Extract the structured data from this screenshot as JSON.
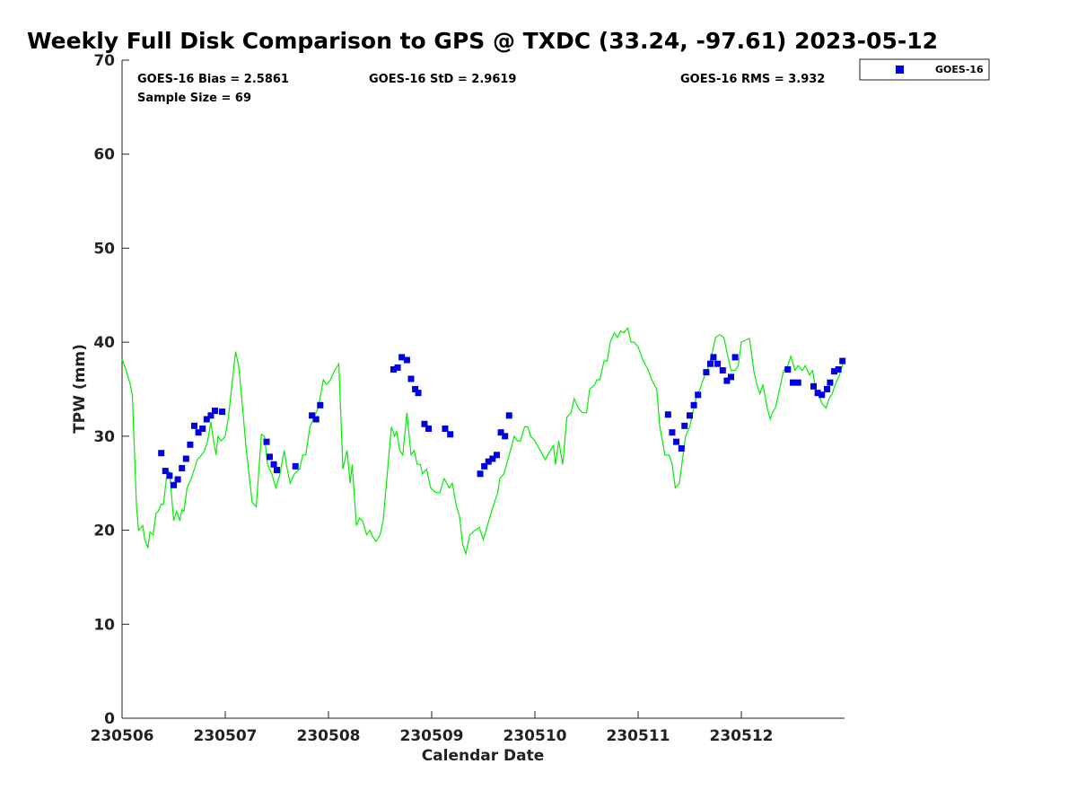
{
  "chart_data": {
    "type": "line",
    "title": "Weekly Full Disk Comparison to GPS @ TXDC (33.24, -97.61) 2023-05-12",
    "xlabel": "Calendar Date",
    "ylabel": "TPW (mm)",
    "xlim": [
      0,
      7
    ],
    "ylim": [
      0,
      70
    ],
    "x_ticks": [
      {
        "x": 0,
        "label": "230506"
      },
      {
        "x": 1,
        "label": "230507"
      },
      {
        "x": 2,
        "label": "230508"
      },
      {
        "x": 3,
        "label": "230509"
      },
      {
        "x": 4,
        "label": "230510"
      },
      {
        "x": 5,
        "label": "230511"
      },
      {
        "x": 6,
        "label": "230512"
      }
    ],
    "y_ticks": [
      0,
      10,
      20,
      30,
      40,
      50,
      60,
      70
    ],
    "stats": {
      "bias": "GOES-16 Bias = 2.5861",
      "std": "GOES-16 StD = 2.9619",
      "rms": "GOES-16 RMS = 3.932",
      "sample": "Sample Size = 69"
    },
    "legend": {
      "label": "GOES-16",
      "color": "#0000dd",
      "position": "top-right outside"
    },
    "series": [
      {
        "name": "GPS",
        "kind": "line",
        "color": "#00ee00",
        "points": [
          [
            0.0,
            38.2
          ],
          [
            0.04,
            37.0
          ],
          [
            0.08,
            35.5
          ],
          [
            0.1,
            34.3
          ],
          [
            0.14,
            22.5
          ],
          [
            0.16,
            20.0
          ],
          [
            0.2,
            20.5
          ],
          [
            0.22,
            19.0
          ],
          [
            0.25,
            18.1
          ],
          [
            0.27,
            19.8
          ],
          [
            0.3,
            19.5
          ],
          [
            0.33,
            21.8
          ],
          [
            0.35,
            22.0
          ],
          [
            0.38,
            22.8
          ],
          [
            0.4,
            22.7
          ],
          [
            0.43,
            25.5
          ],
          [
            0.46,
            26.3
          ],
          [
            0.5,
            21.0
          ],
          [
            0.53,
            22.0
          ],
          [
            0.56,
            21.0
          ],
          [
            0.58,
            22.2
          ],
          [
            0.6,
            22.0
          ],
          [
            0.63,
            24.5
          ],
          [
            0.67,
            25.5
          ],
          [
            0.7,
            26.5
          ],
          [
            0.73,
            27.5
          ],
          [
            0.77,
            28.0
          ],
          [
            0.8,
            28.5
          ],
          [
            0.83,
            29.5
          ],
          [
            0.86,
            31.5
          ],
          [
            0.88,
            30.0
          ],
          [
            0.91,
            28.0
          ],
          [
            0.93,
            30.0
          ],
          [
            0.96,
            29.5
          ],
          [
            1.0,
            30.0
          ],
          [
            1.03,
            32.0
          ],
          [
            1.06,
            35.0
          ],
          [
            1.1,
            39.0
          ],
          [
            1.13,
            37.5
          ],
          [
            1.16,
            34.0
          ],
          [
            1.2,
            29.0
          ],
          [
            1.23,
            26.0
          ],
          [
            1.26,
            23.0
          ],
          [
            1.3,
            22.5
          ],
          [
            1.35,
            30.2
          ],
          [
            1.38,
            30.0
          ],
          [
            1.41,
            27.0
          ],
          [
            1.45,
            26.0
          ],
          [
            1.49,
            24.5
          ],
          [
            1.53,
            26.0
          ],
          [
            1.57,
            28.5
          ],
          [
            1.6,
            26.5
          ],
          [
            1.63,
            25.0
          ],
          [
            1.67,
            26.0
          ],
          [
            1.72,
            26.5
          ],
          [
            1.75,
            28.0
          ],
          [
            1.78,
            28.0
          ],
          [
            1.82,
            31.0
          ],
          [
            1.86,
            32.0
          ],
          [
            1.9,
            33.0
          ],
          [
            1.95,
            36.0
          ],
          [
            1.98,
            35.5
          ],
          [
            2.02,
            36.0
          ],
          [
            2.06,
            37.0
          ],
          [
            2.1,
            37.7
          ],
          [
            2.14,
            26.5
          ],
          [
            2.18,
            28.5
          ],
          [
            2.21,
            25.0
          ],
          [
            2.23,
            27.0
          ],
          [
            2.27,
            20.5
          ],
          [
            2.3,
            21.3
          ],
          [
            2.33,
            21.0
          ],
          [
            2.37,
            19.5
          ],
          [
            2.4,
            20.0
          ],
          [
            2.43,
            19.3
          ],
          [
            2.46,
            18.8
          ],
          [
            2.5,
            19.5
          ],
          [
            2.53,
            21.0
          ],
          [
            2.57,
            26.0
          ],
          [
            2.61,
            31.0
          ],
          [
            2.64,
            30.0
          ],
          [
            2.66,
            30.5
          ],
          [
            2.69,
            28.5
          ],
          [
            2.72,
            28.0
          ],
          [
            2.76,
            32.5
          ],
          [
            2.8,
            28.0
          ],
          [
            2.83,
            28.5
          ],
          [
            2.86,
            27.0
          ],
          [
            2.89,
            27.0
          ],
          [
            2.91,
            26.0
          ],
          [
            2.95,
            26.5
          ],
          [
            2.99,
            24.5
          ],
          [
            3.04,
            24.0
          ],
          [
            3.08,
            24.0
          ],
          [
            3.12,
            25.5
          ],
          [
            3.17,
            24.5
          ],
          [
            3.2,
            25.0
          ],
          [
            3.24,
            22.5
          ],
          [
            3.27,
            21.5
          ],
          [
            3.3,
            18.5
          ],
          [
            3.33,
            17.5
          ],
          [
            3.37,
            19.5
          ],
          [
            3.42,
            20.0
          ],
          [
            3.46,
            20.3
          ],
          [
            3.5,
            19.0
          ],
          [
            3.54,
            20.5
          ],
          [
            3.58,
            22.0
          ],
          [
            3.61,
            23.0
          ],
          [
            3.64,
            24.0
          ],
          [
            3.66,
            25.5
          ],
          [
            3.7,
            26.0
          ],
          [
            3.75,
            28.0
          ],
          [
            3.8,
            30.0
          ],
          [
            3.83,
            29.5
          ],
          [
            3.86,
            29.5
          ],
          [
            3.9,
            31.0
          ],
          [
            3.93,
            31.0
          ],
          [
            3.96,
            30.0
          ],
          [
            4.0,
            29.5
          ],
          [
            4.05,
            28.5
          ],
          [
            4.1,
            27.5
          ],
          [
            4.15,
            28.5
          ],
          [
            4.18,
            29.0
          ],
          [
            4.2,
            27.0
          ],
          [
            4.23,
            29.5
          ],
          [
            4.27,
            27.0
          ],
          [
            4.31,
            32.0
          ],
          [
            4.35,
            32.5
          ],
          [
            4.38,
            34.0
          ],
          [
            4.42,
            33.0
          ],
          [
            4.46,
            32.5
          ],
          [
            4.5,
            32.5
          ],
          [
            4.53,
            35.0
          ],
          [
            4.58,
            35.5
          ],
          [
            4.6,
            36.0
          ],
          [
            4.63,
            36.0
          ],
          [
            4.67,
            38.0
          ],
          [
            4.7,
            38.0
          ],
          [
            4.73,
            40.0
          ],
          [
            4.77,
            41.0
          ],
          [
            4.8,
            40.5
          ],
          [
            4.83,
            41.2
          ],
          [
            4.86,
            41.0
          ],
          [
            4.9,
            41.5
          ],
          [
            4.93,
            40.0
          ],
          [
            4.96,
            40.0
          ],
          [
            5.0,
            39.5
          ],
          [
            5.05,
            38.0
          ],
          [
            5.1,
            37.0
          ],
          [
            5.13,
            36.0
          ],
          [
            5.18,
            35.0
          ],
          [
            5.21,
            31.0
          ],
          [
            5.26,
            28.0
          ],
          [
            5.3,
            28.0
          ],
          [
            5.33,
            27.0
          ],
          [
            5.36,
            24.5
          ],
          [
            5.4,
            25.0
          ],
          [
            5.43,
            27.5
          ],
          [
            5.46,
            30.0
          ],
          [
            5.5,
            31.0
          ],
          [
            5.54,
            33.0
          ],
          [
            5.57,
            34.5
          ],
          [
            5.6,
            35.0
          ],
          [
            5.63,
            36.0
          ],
          [
            5.67,
            37.0
          ],
          [
            5.71,
            38.5
          ],
          [
            5.75,
            40.5
          ],
          [
            5.79,
            40.8
          ],
          [
            5.83,
            40.5
          ],
          [
            5.86,
            39.0
          ],
          [
            5.9,
            37.0
          ],
          [
            5.94,
            37.0
          ],
          [
            5.97,
            37.5
          ],
          [
            6.0,
            40.0
          ],
          [
            6.04,
            40.2
          ],
          [
            6.08,
            40.4
          ],
          [
            6.12,
            37.0
          ],
          [
            6.15,
            35.5
          ],
          [
            6.18,
            34.5
          ],
          [
            6.21,
            35.5
          ],
          [
            6.25,
            33.0
          ],
          [
            6.28,
            31.8
          ],
          [
            6.3,
            32.5
          ],
          [
            6.33,
            33.0
          ],
          [
            6.37,
            35.0
          ],
          [
            6.41,
            37.0
          ],
          [
            6.45,
            37.5
          ],
          [
            6.48,
            38.5
          ],
          [
            6.52,
            37.0
          ],
          [
            6.55,
            37.5
          ],
          [
            6.59,
            37.0
          ],
          [
            6.62,
            37.5
          ],
          [
            6.66,
            36.5
          ],
          [
            6.69,
            37.0
          ],
          [
            6.72,
            35.0
          ],
          [
            6.75,
            34.5
          ],
          [
            6.78,
            33.5
          ],
          [
            6.82,
            33.0
          ],
          [
            6.85,
            34.0
          ],
          [
            6.88,
            34.5
          ],
          [
            6.91,
            35.5
          ],
          [
            6.95,
            36.5
          ],
          [
            6.99,
            37.9
          ]
        ]
      },
      {
        "name": "GOES-16",
        "kind": "scatter",
        "color": "#0000dd",
        "points": [
          [
            0.38,
            28.2
          ],
          [
            0.42,
            26.3
          ],
          [
            0.46,
            25.8
          ],
          [
            0.5,
            24.8
          ],
          [
            0.54,
            25.4
          ],
          [
            0.58,
            26.6
          ],
          [
            0.62,
            27.6
          ],
          [
            0.66,
            29.1
          ],
          [
            0.7,
            31.1
          ],
          [
            0.74,
            30.4
          ],
          [
            0.78,
            30.8
          ],
          [
            0.82,
            31.8
          ],
          [
            0.86,
            32.2
          ],
          [
            0.9,
            32.7
          ],
          [
            0.97,
            32.6
          ],
          [
            1.4,
            29.4
          ],
          [
            1.43,
            27.8
          ],
          [
            1.47,
            27.0
          ],
          [
            1.5,
            26.4
          ],
          [
            1.68,
            26.8
          ],
          [
            1.84,
            32.2
          ],
          [
            1.88,
            31.8
          ],
          [
            1.92,
            33.3
          ],
          [
            2.63,
            37.1
          ],
          [
            2.67,
            37.3
          ],
          [
            2.71,
            38.4
          ],
          [
            2.76,
            38.1
          ],
          [
            2.8,
            36.1
          ],
          [
            2.84,
            35.0
          ],
          [
            2.87,
            34.6
          ],
          [
            2.93,
            31.3
          ],
          [
            2.97,
            30.8
          ],
          [
            3.13,
            30.8
          ],
          [
            3.18,
            30.2
          ],
          [
            3.47,
            26.0
          ],
          [
            3.51,
            26.8
          ],
          [
            3.55,
            27.3
          ],
          [
            3.59,
            27.6
          ],
          [
            3.63,
            28.0
          ],
          [
            3.67,
            30.4
          ],
          [
            3.71,
            30.0
          ],
          [
            3.75,
            32.2
          ],
          [
            5.29,
            32.3
          ],
          [
            5.33,
            30.4
          ],
          [
            5.37,
            29.4
          ],
          [
            5.42,
            28.7
          ],
          [
            5.45,
            31.1
          ],
          [
            5.5,
            32.2
          ],
          [
            5.54,
            33.3
          ],
          [
            5.58,
            34.4
          ],
          [
            5.66,
            36.8
          ],
          [
            5.7,
            37.7
          ],
          [
            5.73,
            38.4
          ],
          [
            5.77,
            37.7
          ],
          [
            5.82,
            37.0
          ],
          [
            5.86,
            35.9
          ],
          [
            5.9,
            36.3
          ],
          [
            5.94,
            38.4
          ],
          [
            6.45,
            37.1
          ],
          [
            6.5,
            35.7
          ],
          [
            6.55,
            35.7
          ],
          [
            6.7,
            35.3
          ],
          [
            6.74,
            34.6
          ],
          [
            6.78,
            34.4
          ],
          [
            6.83,
            35.0
          ],
          [
            6.86,
            35.7
          ],
          [
            6.9,
            36.9
          ],
          [
            6.94,
            37.1
          ],
          [
            6.98,
            38.0
          ]
        ]
      }
    ]
  }
}
